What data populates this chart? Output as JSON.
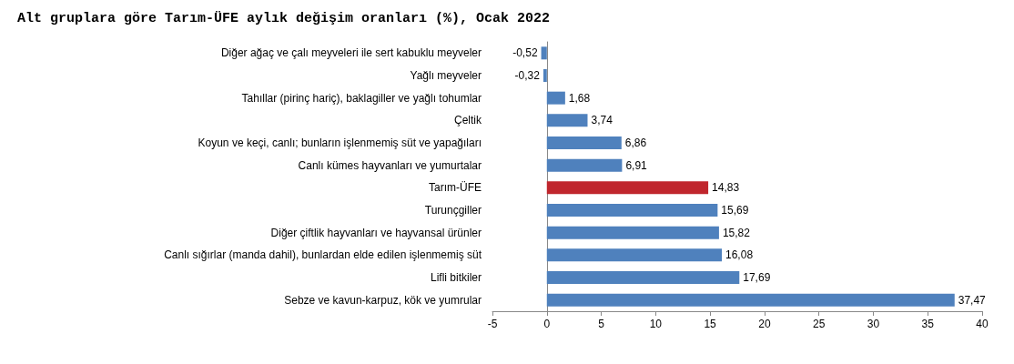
{
  "chart_data": {
    "type": "bar",
    "orientation": "horizontal",
    "title": "Alt gruplara göre Tarım-ÜFE aylık değişim oranları (%), Ocak 2022",
    "categories": [
      "Diğer ağaç ve çalı meyveleri ile sert kabuklu meyveler",
      "Yağlı meyveler",
      "Tahıllar (pirinç hariç), baklagiller ve yağlı tohumlar",
      "Çeltik",
      "Koyun ve keçi, canlı; bunların işlenmemiş süt ve yapağıları",
      "Canlı kümes hayvanları ve yumurtalar",
      "Tarım-ÜFE",
      "Turunçgiller",
      "Diğer çiftlik hayvanları ve hayvansal ürünler",
      "Canlı sığırlar (manda dahil), bunlardan elde edilen işlenmemiş süt",
      "Lifli bitkiler",
      "Sebze ve kavun-karpuz, kök ve yumrular"
    ],
    "values": [
      -0.52,
      -0.32,
      1.68,
      3.74,
      6.86,
      6.91,
      14.83,
      15.69,
      15.82,
      16.08,
      17.69,
      37.47
    ],
    "value_labels": [
      "-0,52",
      "-0,32",
      "1,68",
      "3,74",
      "6,86",
      "6,91",
      "14,83",
      "15,69",
      "15,82",
      "16,08",
      "17,69",
      "37,47"
    ],
    "colors": [
      "#4f81bd",
      "#4f81bd",
      "#4f81bd",
      "#4f81bd",
      "#4f81bd",
      "#4f81bd",
      "#c0262d",
      "#4f81bd",
      "#4f81bd",
      "#4f81bd",
      "#4f81bd",
      "#4f81bd"
    ],
    "xlim": [
      -5,
      40
    ],
    "xticks": [
      -5,
      0,
      5,
      10,
      15,
      20,
      25,
      30,
      35,
      40
    ]
  }
}
